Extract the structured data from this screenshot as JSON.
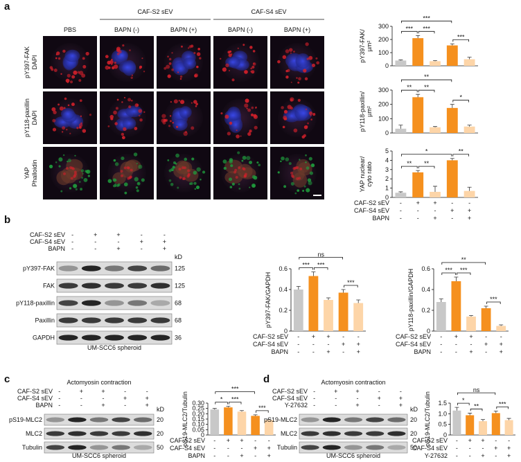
{
  "figure": {
    "a": {
      "label": "a",
      "groups": [
        "CAF-S2 sEV",
        "CAF-S4 sEV"
      ],
      "columns": [
        "PBS",
        "BAPN (-)",
        "BAPN (+)",
        "BAPN (-)",
        "BAPN (+)"
      ],
      "rows": [
        {
          "stain": "pY397-FAK",
          "stain_color": "#d0202a",
          "counterstain": "DAPI",
          "counterstain_color": "#2a4ad0"
        },
        {
          "stain": "pY118-paxillin",
          "stain_color": "#d0202a",
          "counterstain": "DAPI",
          "counterstain_color": "#2a4ad0"
        },
        {
          "stain": "YAP",
          "stain_color": "#d0202a",
          "counterstain": "Phalloidin",
          "counterstain_color": "#1f9a3c"
        }
      ]
    },
    "b": {
      "label": "b",
      "kd_label": "kD",
      "caption": "UM-SCC6 spheroid",
      "conditions": [
        {
          "name": "CAF-S2 sEV",
          "signs": [
            "-",
            "+",
            "+",
            "-",
            "-"
          ]
        },
        {
          "name": "CAF-S4 sEV",
          "signs": [
            "-",
            "-",
            "-",
            "+",
            "+"
          ]
        },
        {
          "name": "BAPN",
          "signs": [
            "-",
            "-",
            "+",
            "-",
            "+"
          ]
        }
      ],
      "bands": [
        {
          "name": "pY397-FAK",
          "kd": 125
        },
        {
          "name": "FAK",
          "kd": 125
        },
        {
          "name": "pY118-paxillin",
          "kd": 68
        },
        {
          "name": "Paxillin",
          "kd": 68
        },
        {
          "name": "GAPDH",
          "kd": 36
        }
      ]
    },
    "c": {
      "label": "c",
      "title": "Actomyosin contraction",
      "kd_label": "kD",
      "caption": "UM-SCC6 spheroid",
      "conditions": [
        {
          "name": "CAF-S2 sEV",
          "signs": [
            "-",
            "+",
            "+",
            "-",
            "-"
          ]
        },
        {
          "name": "CAF-S4 sEV",
          "signs": [
            "-",
            "-",
            "-",
            "+",
            "+"
          ]
        },
        {
          "name": "BAPN",
          "signs": [
            "-",
            "-",
            "+",
            "-",
            "+"
          ]
        }
      ],
      "bands": [
        {
          "name": "pS19-MLC2",
          "kd": 20
        },
        {
          "name": "MLC2",
          "kd": 20
        },
        {
          "name": "Tubulin",
          "kd": 50
        }
      ]
    },
    "d": {
      "label": "d",
      "title": "Actomyosin contraction",
      "kd_label": "kD",
      "caption": "UM-SCC6 spheroid",
      "conditions": [
        {
          "name": "CAF-S2 sEV",
          "signs": [
            "-",
            "+",
            "+",
            "-",
            "-"
          ]
        },
        {
          "name": "CAF-S4 sEV",
          "signs": [
            "-",
            "-",
            "-",
            "+",
            "+"
          ]
        },
        {
          "name": "Y-27632",
          "signs": [
            "-",
            "-",
            "+",
            "-",
            "+"
          ]
        }
      ],
      "bands": [
        {
          "name": "pS19-MLC2",
          "kd": 20
        },
        {
          "name": "MLC2",
          "kd": 20
        },
        {
          "name": "Tubulin",
          "kd": 50
        }
      ]
    }
  },
  "chart_data": [
    {
      "type": "bar",
      "y_label": [
        "pY397-FAK/",
        "µm²"
      ],
      "values": [
        40,
        210,
        35,
        155,
        50
      ],
      "errors": [
        5,
        20,
        5,
        12,
        15
      ],
      "colors": [
        "#c8c8c8",
        "#f5901e",
        "#fdd5a8",
        "#f5901e",
        "#fdd5a8"
      ],
      "ylim": [
        0,
        300
      ],
      "yticks": [
        0,
        100,
        200,
        300
      ],
      "annotations": [
        {
          "label": "***",
          "from": 0,
          "to": 1
        },
        {
          "label": "***",
          "from": 1,
          "to": 2
        },
        {
          "label": "***",
          "from": 3,
          "to": 4
        },
        {
          "label": "***",
          "from": 0,
          "to": 3
        }
      ]
    },
    {
      "type": "bar",
      "y_label": [
        "pY118-paxillin/",
        "µm²"
      ],
      "values": [
        30,
        250,
        40,
        175,
        45
      ],
      "errors": [
        25,
        20,
        5,
        25,
        10
      ],
      "colors": [
        "#c8c8c8",
        "#f5901e",
        "#fdd5a8",
        "#f5901e",
        "#fdd5a8"
      ],
      "ylim": [
        0,
        300
      ],
      "yticks": [
        0,
        100,
        200,
        300
      ],
      "annotations": [
        {
          "label": "**",
          "from": 0,
          "to": 1
        },
        {
          "label": "**",
          "from": 1,
          "to": 2
        },
        {
          "label": "*",
          "from": 3,
          "to": 4
        },
        {
          "label": "**",
          "from": 0,
          "to": 3
        }
      ]
    },
    {
      "type": "bar",
      "y_label": [
        "YAP nuclear/",
        "cyto ratio"
      ],
      "values": [
        0.5,
        2.7,
        0.6,
        4.0,
        0.7
      ],
      "errors": [
        0.1,
        0.2,
        0.6,
        0.2,
        0.4
      ],
      "colors": [
        "#c8c8c8",
        "#f5901e",
        "#fdd5a8",
        "#f5901e",
        "#fdd5a8"
      ],
      "ylim": [
        0,
        5
      ],
      "yticks": [
        0,
        1,
        2,
        3,
        4,
        5
      ],
      "annotations": [
        {
          "label": "**",
          "from": 0,
          "to": 1
        },
        {
          "label": "**",
          "from": 1,
          "to": 2
        },
        {
          "label": "**",
          "from": 3,
          "to": 4
        },
        {
          "label": "*",
          "from": 0,
          "to": 3
        }
      ],
      "conditions": [
        {
          "name": "CAF-S2 sEV",
          "signs": [
            "-",
            "+",
            "+",
            "-",
            "-"
          ]
        },
        {
          "name": "CAF-S4 sEV",
          "signs": [
            "-",
            "-",
            "-",
            "+",
            "+"
          ]
        },
        {
          "name": "BAPN",
          "signs": [
            "-",
            "-",
            "+",
            "-",
            "+"
          ]
        }
      ]
    },
    {
      "type": "bar",
      "y_label": [
        "pY397-FAK/GAPDH"
      ],
      "values": [
        0.4,
        0.53,
        0.3,
        0.37,
        0.27
      ],
      "errors": [
        0.03,
        0.04,
        0.02,
        0.03,
        0.03
      ],
      "colors": [
        "#c8c8c8",
        "#f5901e",
        "#fdd5a8",
        "#f5901e",
        "#fdd5a8"
      ],
      "ylim": [
        0,
        0.6
      ],
      "yticks": [
        0,
        0.2,
        0.4,
        0.6
      ],
      "annotations": [
        {
          "label": "***",
          "from": 0,
          "to": 1
        },
        {
          "label": "***",
          "from": 1,
          "to": 2
        },
        {
          "label": "***",
          "from": 3,
          "to": 4
        },
        {
          "label": "ns",
          "from": 0,
          "to": 3
        }
      ],
      "conditions": [
        {
          "name": "CAF-S2 sEV",
          "signs": [
            "-",
            "+",
            "+",
            "-",
            "-"
          ]
        },
        {
          "name": "CAF-S4 sEV",
          "signs": [
            "-",
            "-",
            "-",
            "+",
            "+"
          ]
        },
        {
          "name": "BAPN",
          "signs": [
            "-",
            "-",
            "+",
            "-",
            "+"
          ]
        }
      ]
    },
    {
      "type": "bar",
      "y_label": [
        "pY118-paxillin/GAPDH"
      ],
      "values": [
        0.28,
        0.48,
        0.14,
        0.22,
        0.05
      ],
      "errors": [
        0.03,
        0.04,
        0.01,
        0.02,
        0.01
      ],
      "colors": [
        "#c8c8c8",
        "#f5901e",
        "#fdd5a8",
        "#f5901e",
        "#fdd5a8"
      ],
      "ylim": [
        0,
        0.6
      ],
      "yticks": [
        0,
        0.2,
        0.4,
        0.6
      ],
      "annotations": [
        {
          "label": "***",
          "from": 0,
          "to": 1
        },
        {
          "label": "***",
          "from": 1,
          "to": 2
        },
        {
          "label": "***",
          "from": 3,
          "to": 4
        },
        {
          "label": "**",
          "from": 0,
          "to": 3
        }
      ],
      "conditions": [
        {
          "name": "CAF-S2 sEV",
          "signs": [
            "-",
            "+",
            "+",
            "-",
            "-"
          ]
        },
        {
          "name": "CAF-S4 sEV",
          "signs": [
            "-",
            "-",
            "-",
            "+",
            "+"
          ]
        },
        {
          "name": "BAPN",
          "signs": [
            "-",
            "-",
            "+",
            "-",
            "+"
          ]
        }
      ]
    },
    {
      "type": "bar",
      "y_label": [
        "pS19-MLC2/Tubulin"
      ],
      "values": [
        0.24,
        0.26,
        0.22,
        0.18,
        0.14
      ],
      "errors": [
        0.01,
        0.01,
        0.01,
        0.01,
        0.005
      ],
      "colors": [
        "#c8c8c8",
        "#f5901e",
        "#fdd5a8",
        "#f5901e",
        "#fdd5a8"
      ],
      "ylim": [
        0,
        0.3
      ],
      "yticks": [
        0,
        0.05,
        {
          "value": 0.1,
          "label": "0.10"
        },
        0.15,
        {
          "value": 0.2,
          "label": "0.20"
        },
        0.25,
        {
          "value": 0.3,
          "label": "0.30"
        }
      ],
      "annotations": [
        {
          "label": "*",
          "from": 0,
          "to": 1
        },
        {
          "label": "***",
          "from": 1,
          "to": 2
        },
        {
          "label": "***",
          "from": 3,
          "to": 4
        },
        {
          "label": "***",
          "from": 0,
          "to": 3
        }
      ],
      "conditions": [
        {
          "name": "CAF-S2 sEV",
          "signs": [
            "-",
            "+",
            "+",
            "-",
            "-"
          ]
        },
        {
          "name": "CAF-S4 sEV",
          "signs": [
            "-",
            "-",
            "-",
            "+",
            "+"
          ]
        },
        {
          "name": "BAPN",
          "signs": [
            "-",
            "-",
            "+",
            "-",
            "+"
          ]
        }
      ]
    },
    {
      "type": "bar",
      "y_label": [
        "pS19-MLC2/Tubulin"
      ],
      "values": [
        1.15,
        0.93,
        0.65,
        1.03,
        0.7
      ],
      "errors": [
        0.15,
        0.1,
        0.08,
        0.1,
        0.08
      ],
      "colors": [
        "#c8c8c8",
        "#f5901e",
        "#fdd5a8",
        "#f5901e",
        "#fdd5a8"
      ],
      "ylim": [
        0,
        1.5
      ],
      "yticks": [
        0,
        0.5,
        {
          "value": 1,
          "label": "1.0"
        },
        1.5
      ],
      "annotations": [
        {
          "label": "*",
          "from": 0,
          "to": 1
        },
        {
          "label": "**",
          "from": 1,
          "to": 2
        },
        {
          "label": "***",
          "from": 3,
          "to": 4
        },
        {
          "label": "ns",
          "from": 0,
          "to": 3
        }
      ],
      "conditions": [
        {
          "name": "CAF-S2 sEV",
          "signs": [
            "-",
            "+",
            "+",
            "-",
            "-"
          ]
        },
        {
          "name": "CAF-S4 sEV",
          "signs": [
            "-",
            "-",
            "-",
            "+",
            "+"
          ]
        },
        {
          "name": "Y-27632",
          "signs": [
            "-",
            "-",
            "+",
            "-",
            "+"
          ]
        }
      ]
    }
  ]
}
